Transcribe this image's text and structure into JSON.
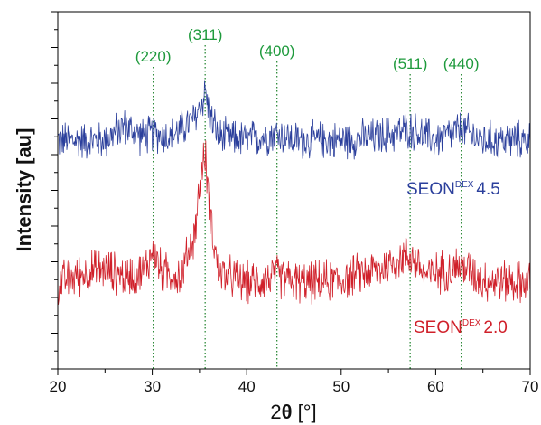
{
  "chart_data": {
    "type": "line",
    "title": "",
    "xlabel": "2θ [°]",
    "xlabel_parts": {
      "main": "2",
      "theta": "θ",
      "unit": " [°]"
    },
    "ylabel": "Intensity [au]",
    "xlim": [
      20,
      70
    ],
    "xticks": [
      "20",
      "30",
      "40",
      "50",
      "60",
      "70"
    ],
    "y_tick_labels": "none",
    "grid": false,
    "legend": "none",
    "peak_lines": [
      {
        "label": "(220)",
        "x": 30.1
      },
      {
        "label": "(311)",
        "x": 35.6
      },
      {
        "label": "(400)",
        "x": 43.2
      },
      {
        "label": "(511)",
        "x": 57.3
      },
      {
        "label": "(440)",
        "x": 62.7
      }
    ],
    "series": [
      {
        "name": "SEON DEX 4.5",
        "label_main": "SEON",
        "label_sup": "DEX",
        "label_value": "4.5",
        "color": "#2b3f9c",
        "baseline": 0.64,
        "x": [
          20,
          25,
          27,
          29,
          30.1,
          32,
          34.5,
          35.3,
          35.6,
          36,
          37,
          40,
          43.2,
          45,
          50,
          54,
          57.3,
          60,
          62.7,
          65,
          70
        ],
        "y": [
          0.64,
          0.64,
          0.68,
          0.65,
          0.66,
          0.65,
          0.7,
          0.75,
          0.78,
          0.72,
          0.65,
          0.64,
          0.66,
          0.64,
          0.64,
          0.65,
          0.67,
          0.64,
          0.67,
          0.64,
          0.64
        ]
      },
      {
        "name": "SEON DEX 2.0",
        "label_main": "SEON",
        "label_sup": "DEX",
        "label_value": "2.0",
        "color": "#d0202a",
        "baseline": 0.24,
        "x": [
          20,
          23,
          25,
          27,
          29,
          30.1,
          31,
          33,
          34.5,
          35.2,
          35.6,
          36.2,
          37,
          40,
          43.2,
          46,
          50,
          54,
          57.3,
          59,
          62.7,
          65,
          70
        ],
        "y": [
          0.24,
          0.27,
          0.28,
          0.26,
          0.27,
          0.33,
          0.27,
          0.26,
          0.38,
          0.55,
          0.6,
          0.42,
          0.27,
          0.24,
          0.26,
          0.24,
          0.25,
          0.28,
          0.32,
          0.26,
          0.29,
          0.25,
          0.24
        ]
      }
    ]
  }
}
